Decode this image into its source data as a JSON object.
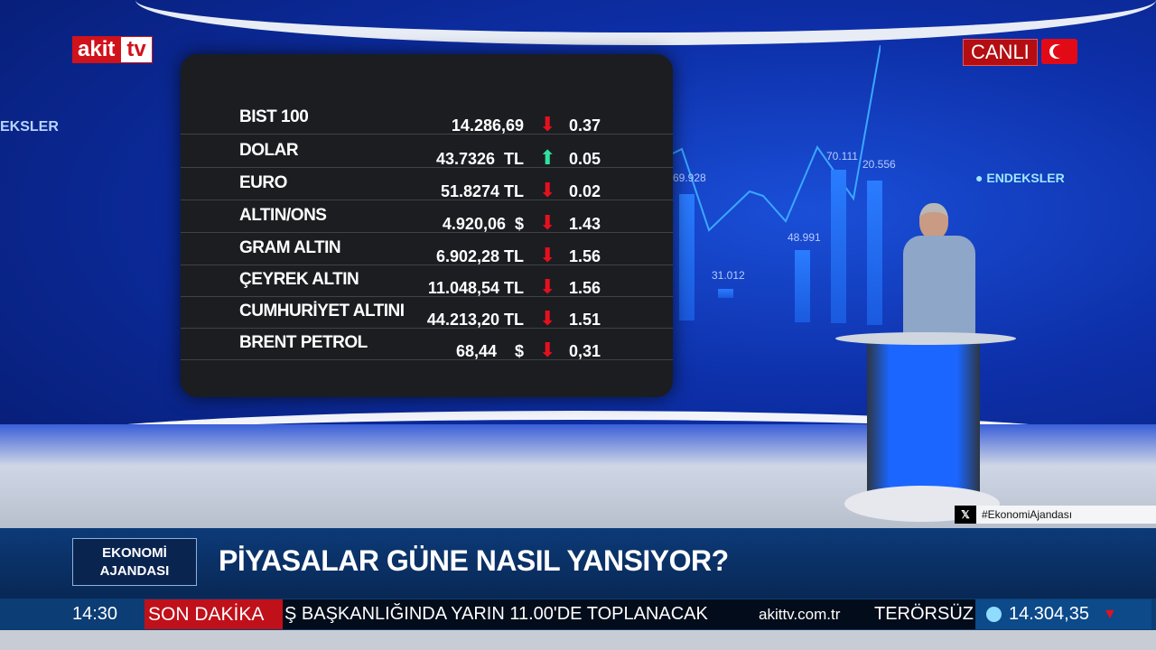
{
  "channel": {
    "logo_left": "akit",
    "logo_right": "tv",
    "live_label": "CANLI"
  },
  "wall": {
    "left_label": "EKSLER",
    "right_label": "ENDEKSLER",
    "bar_labels": [
      "69.928",
      "31.012",
      "48.991",
      "70.111",
      "20.556"
    ]
  },
  "market_board": {
    "rows": [
      {
        "name": "BIST 100",
        "value": "14.286,69",
        "direction": "down",
        "change": "0.37"
      },
      {
        "name": "DOLAR",
        "value": "43.7326  TL",
        "direction": "up",
        "change": "0.05"
      },
      {
        "name": "EURO",
        "value": "51.8274 TL",
        "direction": "down",
        "change": "0.02"
      },
      {
        "name": "ALTIN/ONS",
        "value": "4.920,06  $",
        "direction": "down",
        "change": "1.43"
      },
      {
        "name": "GRAM ALTIN",
        "value": "6.902,28 TL",
        "direction": "down",
        "change": "1.56"
      },
      {
        "name": "ÇEYREK ALTIN",
        "value": "11.048,54 TL",
        "direction": "down",
        "change": "1.56"
      },
      {
        "name": "CUMHURİYET ALTINI",
        "value": "44.213,20 TL",
        "direction": "down",
        "change": "1.51"
      },
      {
        "name": "BRENT PETROL",
        "value": "68,44    $",
        "direction": "down",
        "change": "0,31"
      }
    ]
  },
  "hashtag": {
    "icon": "x-logo",
    "text": "#EkonomiAjandası"
  },
  "lower_third": {
    "program_line1": "EKONOMİ",
    "program_line2": "AJANDASI",
    "headline": "PİYASALAR GÜNE NASIL YANSIYOR?"
  },
  "ticker": {
    "time": "14:30",
    "breaking_label": "SON DAKİKA",
    "news_text": "Ş BAŞKANLIĞINDA YARIN 11.00'DE TOPLANACAK",
    "website": "akittv.com.tr",
    "next_text": "TERÖRSÜZ",
    "index_value": "14.304,35",
    "index_direction": "down"
  },
  "colors": {
    "brand_red": "#d0121b",
    "down": "#e5101e",
    "up": "#33e0a0",
    "navy": "#0c3a78"
  }
}
